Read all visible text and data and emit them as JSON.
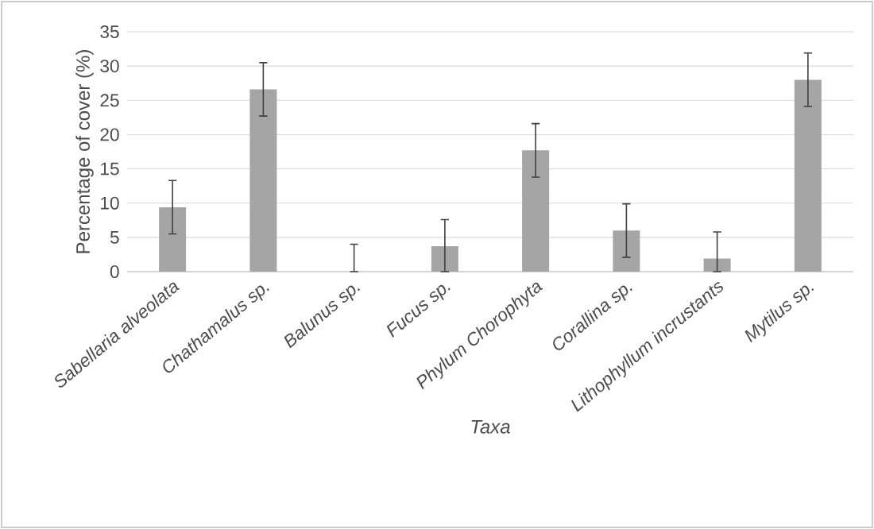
{
  "chart_data": {
    "type": "bar",
    "xlabel": "Taxa",
    "ylabel": "Percentage of cover (%)",
    "categories": [
      "Sabellaria alveolata",
      "Chathamalus sp.",
      "Balunus sp.",
      "Fucus sp.",
      "Phylum Chorophyta",
      "Corallina sp.",
      "Lithophyllum incrustants",
      "Mytilus sp."
    ],
    "values": [
      9.4,
      26.6,
      0,
      3.7,
      17.7,
      6.0,
      1.9,
      28.0
    ],
    "errors": [
      3.9,
      3.9,
      [
        0,
        4
      ],
      [
        0,
        7.6
      ],
      3.9,
      3.9,
      [
        0,
        5.8
      ],
      3.9
    ],
    "color": "#a5a5a5",
    "ylim": [
      0,
      35
    ],
    "yticks": [
      0,
      5,
      10,
      15,
      20,
      25,
      30,
      35
    ],
    "grid": "y"
  }
}
